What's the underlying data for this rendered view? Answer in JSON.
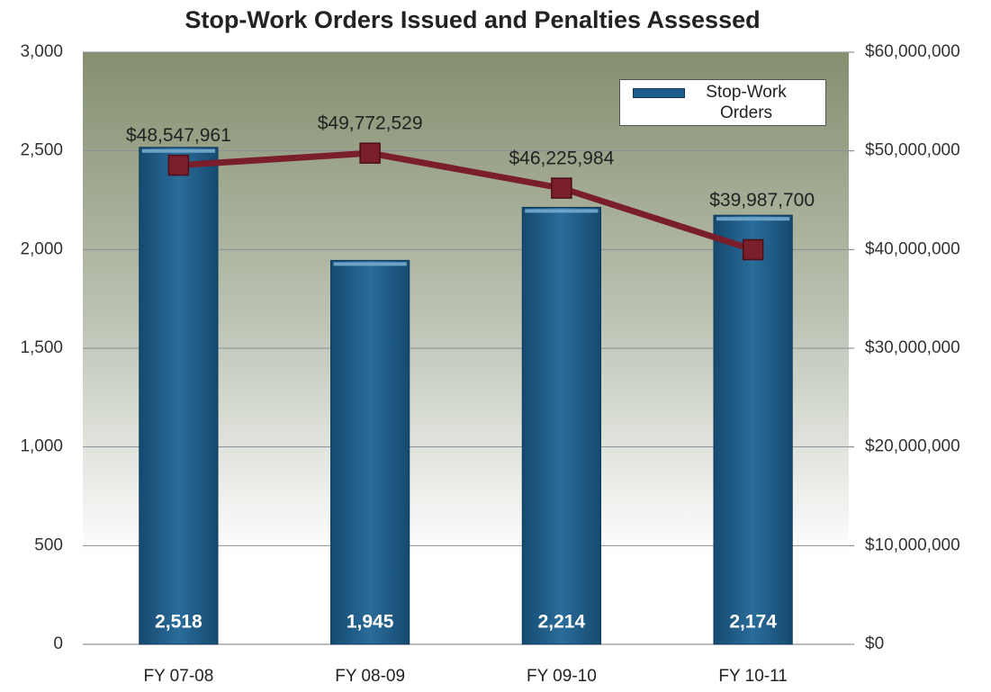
{
  "chart_data": {
    "type": "bar",
    "title": "Stop-Work Orders Issued and Penalties Assessed",
    "categories": [
      "FY 07-08",
      "FY 08-09",
      "FY 09-10",
      "FY 10-11"
    ],
    "series": [
      {
        "name": "Stop-Work Orders",
        "type": "bar",
        "color": "#1d5e8c",
        "values": [
          2518,
          1945,
          2214,
          2174
        ],
        "value_labels": [
          "2,518",
          "1,945",
          "2,214",
          "2,174"
        ]
      },
      {
        "type": "line",
        "axis": "y2",
        "color": "#7a1e2b",
        "values": [
          48547961,
          49772529,
          46225984,
          39987700
        ],
        "value_labels": [
          "$48,547,961",
          "$49,772,529",
          "$46,225,984",
          "$39,987,700"
        ]
      }
    ],
    "ylim": [
      0,
      3000
    ],
    "yticks": [
      0,
      500,
      {
        "value": 1000,
        "label": "1,000"
      },
      {
        "value": 1500,
        "label": "1,500"
      },
      {
        "value": 2000,
        "label": "2,000"
      },
      {
        "value": 2500,
        "label": "2,500"
      },
      {
        "value": 3000,
        "label": "3,000"
      }
    ],
    "y2lim": [
      0,
      60000000
    ],
    "y2ticks": [
      {
        "value": 0,
        "label": "$0"
      },
      {
        "value": 10000000,
        "label": "$10,000,000"
      },
      {
        "value": 20000000,
        "label": "$20,000,000"
      },
      {
        "value": 30000000,
        "label": "$30,000,000"
      },
      {
        "value": 40000000,
        "label": "$40,000,000"
      },
      {
        "value": 50000000,
        "label": "$50,000,000"
      },
      {
        "value": 60000000,
        "label": "$60,000,000"
      }
    ],
    "grid": true,
    "legend": "top-right"
  }
}
